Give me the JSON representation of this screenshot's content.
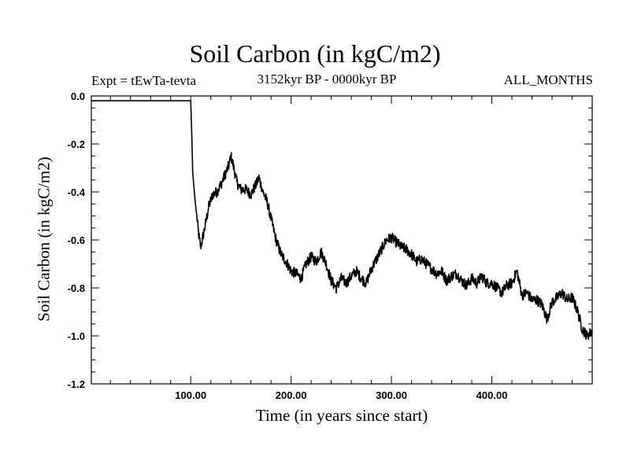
{
  "chart_data": {
    "type": "line",
    "title": "Soil Carbon (in kgC/m2)",
    "subtitle_left": "Expt = tEwTa-tevta",
    "subtitle_center": "3152kyr BP - 0000kyr BP",
    "subtitle_right": "ALL_MONTHS",
    "xlabel": "Time (in years since start)",
    "ylabel": "Soil Carbon (in kgC/m2)",
    "xlim": [
      1,
      500
    ],
    "ylim": [
      -1.2,
      0.0
    ],
    "xticks": [
      100,
      200,
      300,
      400
    ],
    "xtick_labels": [
      "100.00",
      "200.00",
      "300.00",
      "400.00"
    ],
    "yticks": [
      0.0,
      -0.2,
      -0.4,
      -0.6,
      -0.8,
      -1.0,
      -1.2
    ],
    "ytick_labels": [
      "0.0",
      "-0.2",
      "-0.4",
      "-0.6",
      "-0.8",
      "-1.0",
      "-1.2"
    ],
    "grid": false,
    "series": [
      {
        "name": "Soil Carbon",
        "color": "#000000",
        "x": [
          1,
          99,
          100,
          101,
          102,
          104,
          106,
          108,
          110,
          114,
          118,
          122,
          126,
          130,
          134,
          138,
          140,
          143,
          146,
          150,
          155,
          160,
          165,
          168,
          172,
          176,
          180,
          185,
          190,
          195,
          200,
          205,
          210,
          215,
          220,
          225,
          230,
          235,
          240,
          245,
          250,
          255,
          260,
          265,
          270,
          275,
          280,
          285,
          290,
          295,
          300,
          305,
          310,
          315,
          320,
          325,
          330,
          335,
          340,
          345,
          350,
          355,
          360,
          365,
          370,
          375,
          380,
          385,
          390,
          395,
          400,
          405,
          410,
          415,
          420,
          425,
          430,
          435,
          440,
          445,
          450,
          455,
          460,
          465,
          470,
          475,
          480,
          485,
          490,
          495,
          500
        ],
        "y": [
          -0.02,
          -0.02,
          -0.02,
          -0.15,
          -0.32,
          -0.42,
          -0.5,
          -0.58,
          -0.63,
          -0.55,
          -0.46,
          -0.41,
          -0.4,
          -0.37,
          -0.33,
          -0.29,
          -0.25,
          -0.3,
          -0.36,
          -0.39,
          -0.39,
          -0.41,
          -0.37,
          -0.34,
          -0.4,
          -0.44,
          -0.51,
          -0.6,
          -0.66,
          -0.69,
          -0.73,
          -0.74,
          -0.76,
          -0.7,
          -0.67,
          -0.69,
          -0.65,
          -0.7,
          -0.77,
          -0.8,
          -0.76,
          -0.78,
          -0.75,
          -0.73,
          -0.76,
          -0.78,
          -0.72,
          -0.68,
          -0.64,
          -0.6,
          -0.59,
          -0.61,
          -0.63,
          -0.64,
          -0.66,
          -0.69,
          -0.68,
          -0.7,
          -0.72,
          -0.74,
          -0.73,
          -0.77,
          -0.75,
          -0.74,
          -0.77,
          -0.79,
          -0.76,
          -0.78,
          -0.75,
          -0.78,
          -0.78,
          -0.8,
          -0.82,
          -0.79,
          -0.78,
          -0.73,
          -0.83,
          -0.82,
          -0.85,
          -0.85,
          -0.87,
          -0.93,
          -0.86,
          -0.84,
          -0.82,
          -0.85,
          -0.84,
          -0.89,
          -0.97,
          -1.0,
          -0.98
        ]
      }
    ]
  }
}
